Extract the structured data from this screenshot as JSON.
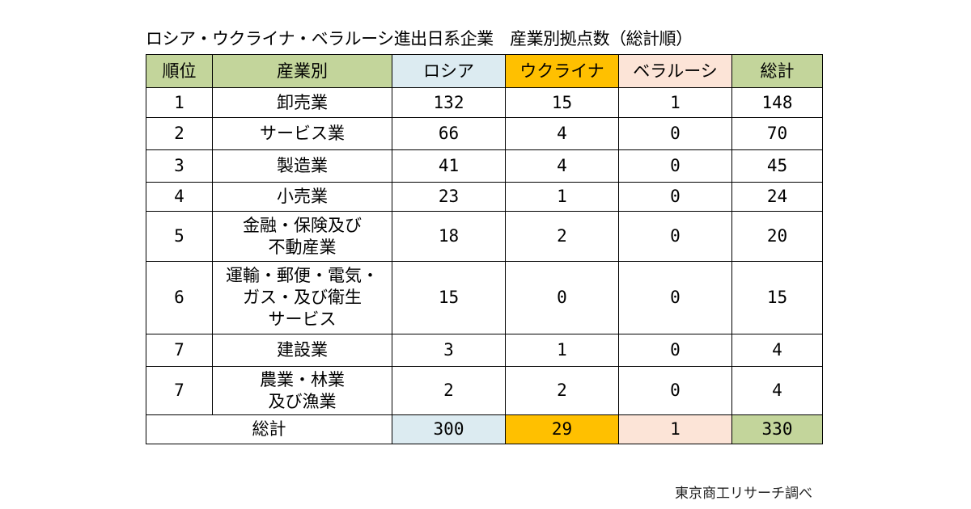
{
  "title": "ロシア・ウクライナ・ベラルーシ進出日系企業　産業別拠点数（総計順）",
  "headers": {
    "rank": "順位",
    "industry": "産業別",
    "russia": "ロシア",
    "ukraine": "ウクライナ",
    "belarus": "ベラルーシ",
    "total": "総計"
  },
  "rows": [
    {
      "rank": "1",
      "industry": "卸売業",
      "russia": "132",
      "ukraine": "15",
      "belarus": "1",
      "total": "148"
    },
    {
      "rank": "2",
      "industry": "サービス業",
      "russia": "66",
      "ukraine": "4",
      "belarus": "0",
      "total": "70"
    },
    {
      "rank": "3",
      "industry": "製造業",
      "russia": "41",
      "ukraine": "4",
      "belarus": "0",
      "total": "45"
    },
    {
      "rank": "4",
      "industry": "小売業",
      "russia": "23",
      "ukraine": "1",
      "belarus": "0",
      "total": "24"
    },
    {
      "rank": "5",
      "industry": "金融・保険及び\n不動産業",
      "russia": "18",
      "ukraine": "2",
      "belarus": "0",
      "total": "20"
    },
    {
      "rank": "6",
      "industry": "運輸・郵便・電気・\nガス・及び衛生\nサービス",
      "russia": "15",
      "ukraine": "0",
      "belarus": "0",
      "total": "15"
    },
    {
      "rank": "7",
      "industry": "建設業",
      "russia": "3",
      "ukraine": "1",
      "belarus": "0",
      "total": "4"
    },
    {
      "rank": "7",
      "industry": "農業・林業\n及び漁業",
      "russia": "2",
      "ukraine": "2",
      "belarus": "0",
      "total": "4"
    }
  ],
  "footer": {
    "label": "総計",
    "russia": "300",
    "ukraine": "29",
    "belarus": "1",
    "total": "330"
  },
  "source": "東京商工リサーチ調べ",
  "colors": {
    "header_green": "#c3d59b",
    "russia_blue": "#dcebf1",
    "ukraine_orange": "#ffc000",
    "belarus_peach": "#fce4d7"
  }
}
